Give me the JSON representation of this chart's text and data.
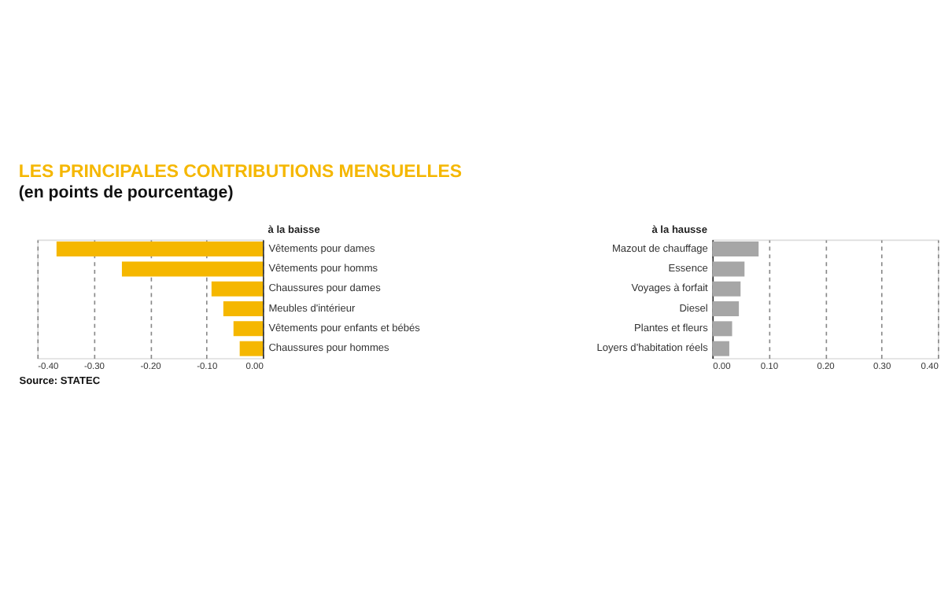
{
  "chart_data": [
    {
      "type": "bar",
      "orientation": "horizontal",
      "title": "LES PRINCIPALES CONTRIBUTIONS MENSUELLES",
      "subtitle": "(en points de pourcentage)",
      "categories": [
        "Vêtements pour dames",
        "Vêtements pour homms",
        "Chaussures pour dames",
        "Meubles d'intérieur",
        "Vêtements pour enfants et bébés",
        "Chaussures pour hommes"
      ],
      "values": [
        -0.366,
        -0.25,
        -0.091,
        -0.07,
        -0.052,
        -0.041
      ],
      "color": "#f5b700",
      "xlim": [
        -0.4,
        0
      ],
      "xticks": [
        {
          "value": -0.4,
          "label": "-0.40"
        },
        {
          "value": -0.3,
          "label": "-0.30"
        },
        {
          "value": -0.2,
          "label": "-0.20"
        },
        {
          "value": -0.1,
          "label": "-0.10"
        },
        {
          "value": 0,
          "label": "0.00"
        }
      ],
      "grid": "x",
      "annotations": [
        "à la baisse",
        "Source: STATEC"
      ]
    },
    {
      "type": "bar",
      "orientation": "horizontal",
      "categories": [
        "Mazout de chauffage",
        "Essence",
        "Voyages à forfait",
        "Diesel",
        "Plantes et fleurs",
        "Loyers d'habitation réels"
      ],
      "values": [
        0.082,
        0.057,
        0.05,
        0.047,
        0.035,
        0.03
      ],
      "color": "#a6a6a6",
      "xlim": [
        0,
        0.4
      ],
      "xticks": [
        {
          "value": 0,
          "label": "0.00"
        },
        {
          "value": 0.1,
          "label": "0.10"
        },
        {
          "value": 0.2,
          "label": "0.20"
        },
        {
          "value": 0.3,
          "label": "0.30"
        },
        {
          "value": 0.4,
          "label": "0.40"
        }
      ],
      "grid": "x",
      "annotations": [
        "à la hausse"
      ]
    }
  ]
}
